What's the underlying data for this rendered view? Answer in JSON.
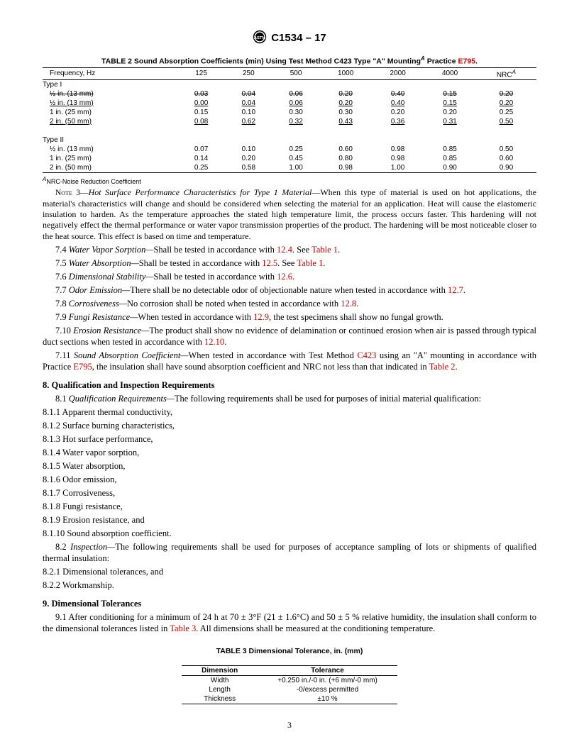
{
  "header": {
    "designation": "C1534 – 17"
  },
  "table2": {
    "title_a": "TABLE 2 Sound Absorption Coefficients (min) Using Test Method C423 Type \"A\" Mounting",
    "title_b": " Practice ",
    "practice": "E795",
    "head": [
      "Frequency, Hz",
      "125",
      "250",
      "500",
      "1000",
      "2000",
      "4000",
      "NRC"
    ],
    "type1_label": "Type I",
    "type1_rows": [
      {
        "label_html": "½ in. (13 mm)",
        "vals": [
          "0.03",
          "0.04",
          "0.06",
          "0.20",
          "0.40",
          "0.15",
          "0.20"
        ],
        "strike": true
      },
      {
        "label_html": "½ in. (13 mm)",
        "vals": [
          "0.00",
          "0.04",
          "0.06",
          "0.20",
          "0.40",
          "0.15",
          "0.20"
        ],
        "underline": true
      },
      {
        "label_html": "1 in. (25 mm)",
        "vals": [
          "0.15",
          "0.10",
          "0.30",
          "0.30",
          "0.20",
          "0.20",
          "0.25"
        ]
      },
      {
        "label_html": "2 in. (50 mm)",
        "vals": [
          "0.08",
          "0.62",
          "0.32",
          "0.43",
          "0.36",
          "0.31",
          "0.50"
        ],
        "underline": true
      }
    ],
    "type2_label": "Type II",
    "type2_rows": [
      {
        "label_html": "½ in. (13 mm)",
        "vals": [
          "0.07",
          "0.10",
          "0.25",
          "0.60",
          "0.98",
          "0.85",
          "0.50"
        ]
      },
      {
        "label_html": "1 in. (25 mm)",
        "vals": [
          "0.14",
          "0.20",
          "0.45",
          "0.80",
          "0.98",
          "0.85",
          "0.60"
        ]
      },
      {
        "label_html": "2 in. (50 mm)",
        "vals": [
          "0.25",
          "0.58",
          "1.00",
          "0.98",
          "1.00",
          "0.90",
          "0.90"
        ]
      }
    ],
    "footnote_sup": "A",
    "footnote": "NRC-Noise Reduction Coefficient"
  },
  "note3": {
    "lead": "Note 3—",
    "ital": "Hot Surface Performance Characteristics for Type 1 Material",
    "text": "—When this type of material is used on hot applications, the material's characteristics will change and should be considered when selecting the material for an application. Heat will cause the elastomeric insulation to harden. As the temperature approaches the stated high temperature limit, the process occurs faster. This hardening will not negatively effect the thermal performance or water vapor transmission properties of the product. The hardening will be most noticeable closer to the heat source. This effect is based on time and temperature."
  },
  "p74": {
    "num": "7.4 ",
    "ital": "Water Vapor Sorption—",
    "t1": "Shall be tested in accordance with ",
    "r1": "12.4",
    "t2": ". See ",
    "r2": "Table 1",
    "t3": "."
  },
  "p75": {
    "num": "7.5 ",
    "ital": "Water Absorption—",
    "t1": "Shall be tested in accordance with ",
    "r1": "12.5",
    "t2": ". See ",
    "r2": "Table 1",
    "t3": "."
  },
  "p76": {
    "num": "7.6 ",
    "ital": "Dimensional Stability—",
    "t1": "Shall be tested in accordance with ",
    "r1": "12.6",
    "t2": "."
  },
  "p77": {
    "num": "7.7 ",
    "ital": "Odor Emission—",
    "t1": "There shall be no detectable odor of objectionable nature when tested in accordance with ",
    "r1": "12.7",
    "t2": "."
  },
  "p78": {
    "num": "7.8 ",
    "ital": "Corrosiveness—",
    "t1": "No corrosion shall be noted when tested in accordance with ",
    "r1": "12.8",
    "t2": "."
  },
  "p79": {
    "num": "7.9 ",
    "ital": "Fungi Resistance—",
    "t1": "When tested in accordance with ",
    "r1": "12.9",
    "t2": ", the test specimens shall show no fungal growth."
  },
  "p710": {
    "num": "7.10 ",
    "ital": "Erosion Resistance—",
    "t1": "The product shall show no evidence of delamination or continued erosion when air is passed through typical duct sections when tested in accordance with ",
    "r1": "12.10",
    "t2": "."
  },
  "p711": {
    "num": "7.11 ",
    "ital": "Sound Absorption Coefficient—",
    "t1": "When tested in accordance with Test Method ",
    "r1": "C423",
    "t2": " using an \"A\" mounting in accordance with Practice ",
    "r2": "E795",
    "t3": ", the insulation shall have sound absorption coefficient and NRC not less than that indicated in ",
    "r3": "Table 2",
    "t4": "."
  },
  "sec8": {
    "head": "8. Qualification and Inspection Requirements",
    "p81": {
      "num": "8.1 ",
      "ital": "Qualification Requirements—",
      "t": "The following requirements shall be used for purposes of initial material qualification:"
    },
    "items": [
      "8.1.1 Apparent thermal conductivity,",
      "8.1.2 Surface burning characteristics,",
      "8.1.3 Hot surface performance,",
      "8.1.4 Water vapor sorption,",
      "8.1.5 Water absorption,",
      "8.1.6 Odor emission,",
      "8.1.7 Corrosiveness,",
      "8.1.8 Fungi resistance,",
      "8.1.9 Erosion resistance, and",
      "8.1.10 Sound absorption coefficient."
    ],
    "p82": {
      "num": "8.2 ",
      "ital": "Inspection—",
      "t": "The following requirements shall be used for purposes of acceptance sampling of lots or shipments of qualified thermal insulation:"
    },
    "items2": [
      "8.2.1 Dimensional tolerances, and",
      "8.2.2 Workmanship."
    ]
  },
  "sec9": {
    "head": "9. Dimensional Tolerances",
    "p91a": "9.1 After conditioning for a minimum of 24 h at 70 ± 3°F (21 ± 1.6°C) and 50 ± 5 % relative humidity, the insulation shall conform to the dimensional tolerances listed in ",
    "r1": "Table 3",
    "p91b": ". All dimensions shall be measured at the conditioning temperature."
  },
  "table3": {
    "title": "TABLE 3 Dimensional Tolerance, in. (mm)",
    "head": [
      "Dimension",
      "Tolerance"
    ],
    "rows": [
      [
        "Width",
        "+0.250 in./-0 in. (+6 mm/-0 mm)"
      ],
      [
        "Length",
        "-0/excess permitted"
      ],
      [
        "Thickness",
        "±10 %"
      ]
    ]
  },
  "pagenum": "3"
}
